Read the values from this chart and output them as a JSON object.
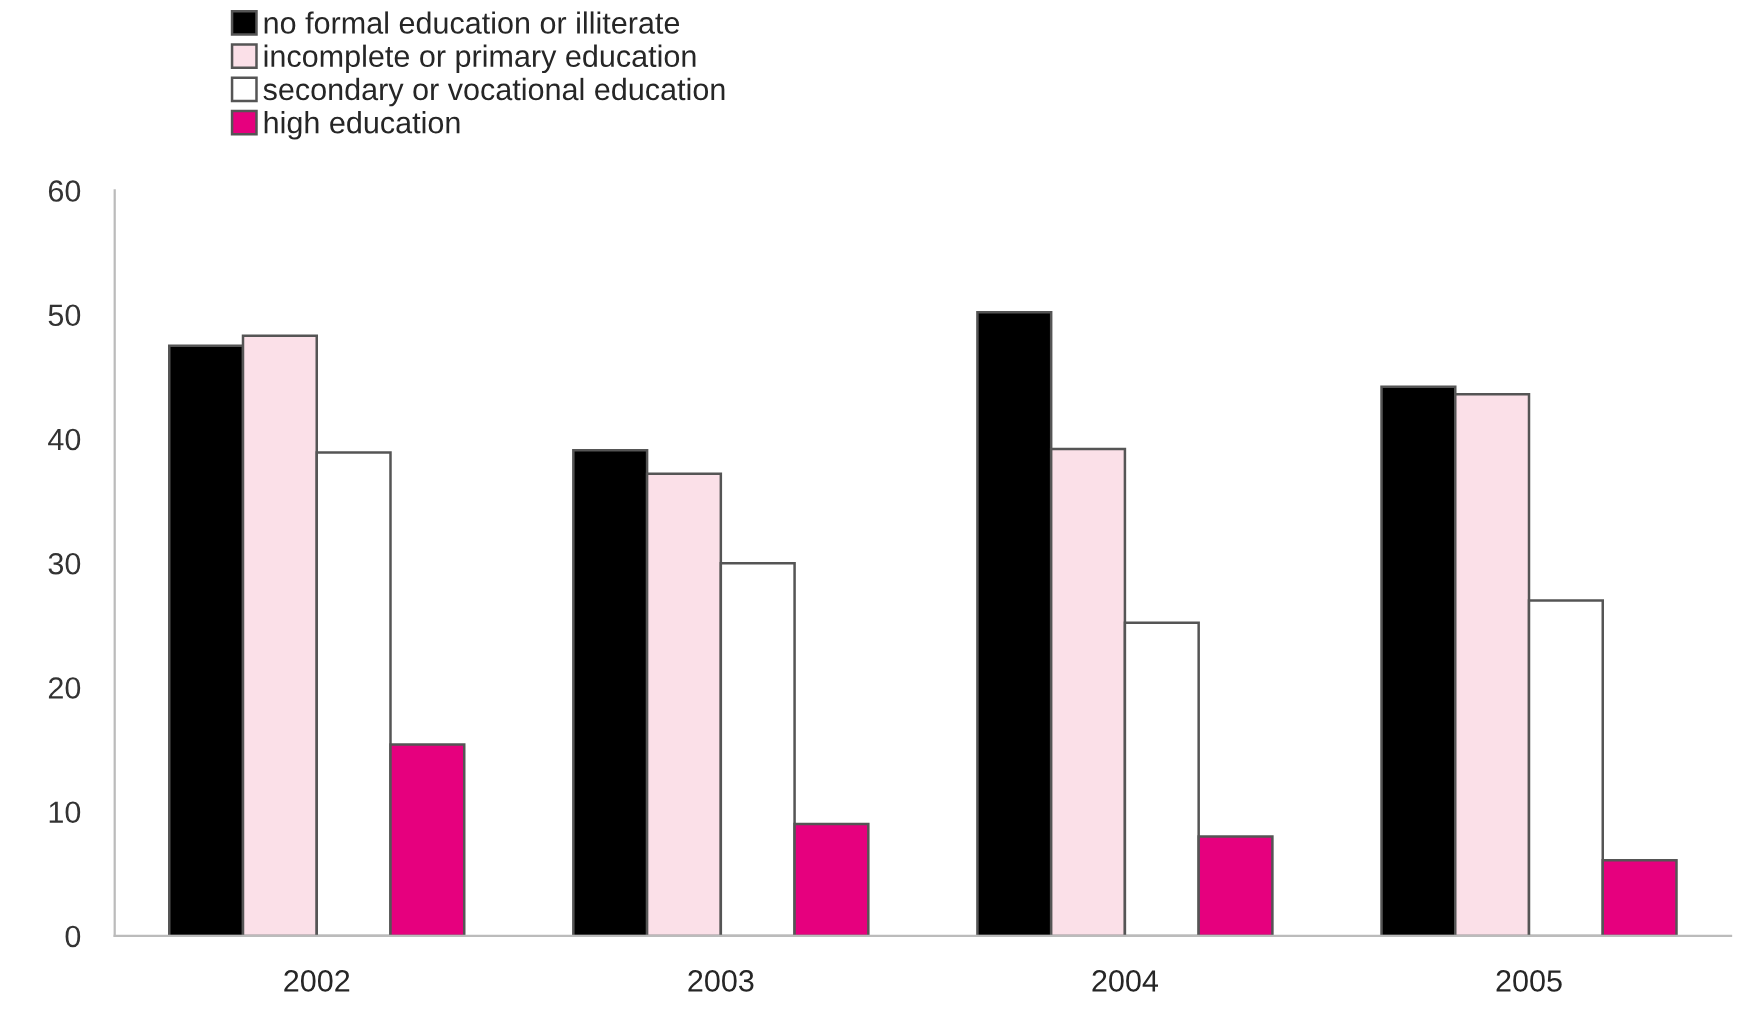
{
  "chart_data": {
    "type": "bar",
    "categories": [
      "2002",
      "2003",
      "2004",
      "2005"
    ],
    "series": [
      {
        "name": "no formal education or illiterate",
        "color": "#000000",
        "values": [
          47.5,
          39.1,
          50.2,
          44.2
        ]
      },
      {
        "name": "incomplete or primary education",
        "color": "#fbe0e8",
        "values": [
          48.3,
          37.2,
          39.2,
          43.6
        ]
      },
      {
        "name": "secondary or vocational education",
        "color": "#ffffff",
        "values": [
          38.9,
          30.0,
          25.2,
          27.0
        ]
      },
      {
        "name": "high education",
        "color": "#e6007e",
        "values": [
          15.4,
          9.0,
          8.0,
          6.1
        ]
      }
    ],
    "ylim": [
      0,
      60
    ],
    "yticks": [
      0,
      10,
      20,
      30,
      40,
      50,
      60
    ],
    "grid": false,
    "legend": "top left"
  }
}
